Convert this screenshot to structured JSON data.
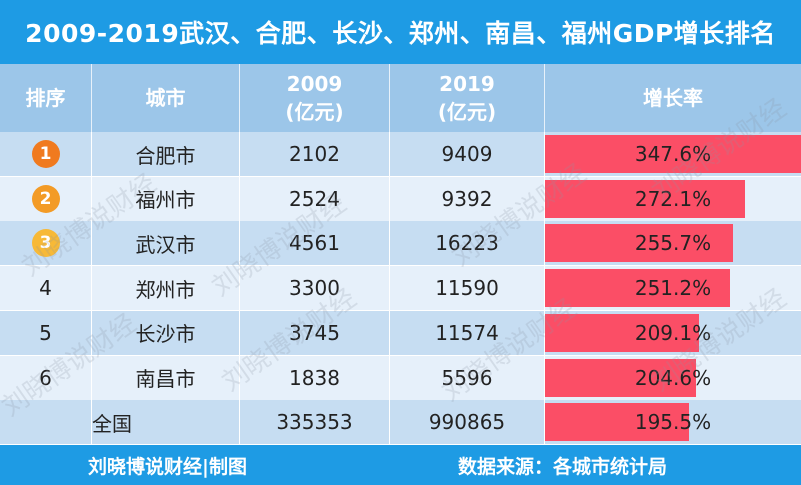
{
  "title": "2009-2019武汉、合肥、长沙、郑州、南昌、福州GDP增长排名",
  "headers": {
    "rank": "排序",
    "city": "城市",
    "y2009": "2009",
    "y2009_unit": "(亿元)",
    "y2019": "2019",
    "y2019_unit": "(亿元)",
    "growth": "增长率"
  },
  "rows": [
    {
      "rank": "1",
      "city": "合肥市",
      "v2009": "2102",
      "v2019": "9409",
      "growth": "347.6%"
    },
    {
      "rank": "2",
      "city": "福州市",
      "v2009": "2524",
      "v2019": "9392",
      "growth": "272.1%"
    },
    {
      "rank": "3",
      "city": "武汉市",
      "v2009": "4561",
      "v2019": "16223",
      "growth": "255.7%"
    },
    {
      "rank": "4",
      "city": "郑州市",
      "v2009": "3300",
      "v2019": "11590",
      "growth": "251.2%"
    },
    {
      "rank": "5",
      "city": "长沙市",
      "v2009": "3745",
      "v2019": "11574",
      "growth": "209.1%"
    },
    {
      "rank": "6",
      "city": "南昌市",
      "v2009": "1838",
      "v2019": "5596",
      "growth": "204.6%"
    },
    {
      "rank": "",
      "city": "全国",
      "v2009": "335353",
      "v2019": "990865",
      "growth": "195.5%"
    }
  ],
  "medal_colors": {
    "1": "#f07a1f",
    "2": "#f39b26",
    "3": "#f7b937"
  },
  "colors": {
    "title_bg": "#1e9be4",
    "header_bg": "#9cc6e9",
    "row_odd": "#c6ddf2",
    "row_even": "#e6f0fa",
    "bar": "#fb4e66"
  },
  "watermark": "刘晓博说财经",
  "footer": {
    "left": "刘晓博说财经|制图",
    "right": "数据来源：各城市统计局"
  },
  "chart_data": {
    "type": "table",
    "title": "2009-2019武汉、合肥、长沙、郑州、南昌、福州GDP增长排名",
    "columns": [
      "排序",
      "城市",
      "2009(亿元)",
      "2019(亿元)",
      "增长率"
    ],
    "categories": [
      "合肥市",
      "福州市",
      "武汉市",
      "郑州市",
      "长沙市",
      "南昌市",
      "全国"
    ],
    "series": [
      {
        "name": "2009(亿元)",
        "values": [
          2102,
          2524,
          4561,
          3300,
          3745,
          1838,
          335353
        ]
      },
      {
        "name": "2019(亿元)",
        "values": [
          9409,
          9392,
          16223,
          11590,
          11574,
          5596,
          990865
        ]
      },
      {
        "name": "增长率",
        "values": [
          347.6,
          272.1,
          255.7,
          251.2,
          209.1,
          204.6,
          195.5
        ]
      }
    ],
    "growth_bar_max": 347.6
  }
}
